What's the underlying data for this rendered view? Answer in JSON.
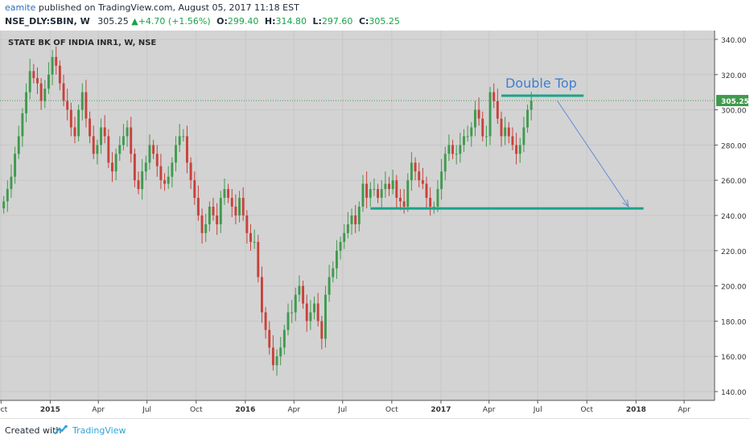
{
  "header": {
    "author": "eamite",
    "published_text": " published on TradingView.com, August 05, 2017 11:18 EST",
    "symbol": "NSE_DLY:SBIN, W",
    "last": "305.25",
    "change": "+4.70 (+1.56%)",
    "o_label": "O:",
    "o_value": "299.40",
    "h_label": "H:",
    "h_value": "314.80",
    "l_label": "L:",
    "l_value": "297.60",
    "c_label": "C:",
    "c_value": "305.25"
  },
  "footer": {
    "created_with": "Created with",
    "brand": "TradingView"
  },
  "colors": {
    "background": "#d3d3d3",
    "up": "#3f9a4d",
    "down": "#c8413a",
    "annotation_line": "#1aa38a",
    "arrow": "#5b8fd8",
    "price_badge": "#3f9a4d"
  },
  "chart_data": {
    "type": "candlestick",
    "title": "STATE BK OF INDIA INR1, W, NSE",
    "ylim": [
      135,
      345
    ],
    "y_ticks": [
      140,
      160,
      180,
      200,
      220,
      240,
      260,
      280,
      300,
      320,
      340
    ],
    "y_tick_labels": [
      "140.00",
      "160.00",
      "180.00",
      "200.00",
      "220.00",
      "240.00",
      "260.00",
      "280.00",
      "300.00",
      "320.00",
      "340.00"
    ],
    "x_range": [
      "2014-09-29",
      "2018-05-28"
    ],
    "x_ticks": [
      {
        "date": "2014-10-01",
        "label": "Oct",
        "bold": false
      },
      {
        "date": "2015-01-01",
        "label": "2015",
        "bold": true
      },
      {
        "date": "2015-04-01",
        "label": "Apr",
        "bold": false
      },
      {
        "date": "2015-07-01",
        "label": "Jul",
        "bold": false
      },
      {
        "date": "2015-10-01",
        "label": "Oct",
        "bold": false
      },
      {
        "date": "2016-01-01",
        "label": "2016",
        "bold": true
      },
      {
        "date": "2016-04-01",
        "label": "Apr",
        "bold": false
      },
      {
        "date": "2016-07-01",
        "label": "Jul",
        "bold": false
      },
      {
        "date": "2016-10-01",
        "label": "Oct",
        "bold": false
      },
      {
        "date": "2017-01-01",
        "label": "2017",
        "bold": true
      },
      {
        "date": "2017-04-01",
        "label": "Apr",
        "bold": false
      },
      {
        "date": "2017-07-01",
        "label": "Jul",
        "bold": false
      },
      {
        "date": "2017-10-01",
        "label": "Oct",
        "bold": false
      },
      {
        "date": "2018-01-01",
        "label": "2018",
        "bold": true
      },
      {
        "date": "2018-04-01",
        "label": "Apr",
        "bold": false
      }
    ],
    "first_candle_date": "2014-10-06",
    "candle_interval_days": 7,
    "closes": [
      248,
      255,
      262,
      275,
      285,
      298,
      310,
      322,
      318,
      315,
      305,
      312,
      320,
      330,
      325,
      315,
      305,
      300,
      290,
      285,
      300,
      310,
      295,
      285,
      275,
      280,
      290,
      285,
      270,
      265,
      275,
      280,
      285,
      290,
      275,
      260,
      255,
      265,
      270,
      280,
      275,
      268,
      260,
      258,
      262,
      270,
      280,
      285,
      285,
      270,
      260,
      250,
      240,
      230,
      235,
      245,
      240,
      235,
      250,
      255,
      250,
      245,
      240,
      250,
      240,
      230,
      225,
      225,
      205,
      185,
      175,
      165,
      155,
      160,
      165,
      175,
      185,
      185,
      195,
      200,
      190,
      180,
      185,
      190,
      180,
      170,
      195,
      205,
      210,
      220,
      225,
      230,
      235,
      240,
      235,
      245,
      258,
      250,
      255,
      255,
      250,
      255,
      258,
      255,
      260,
      250,
      248,
      245,
      260,
      270,
      265,
      260,
      258,
      250,
      245,
      245,
      255,
      265,
      275,
      280,
      275,
      275,
      280,
      285,
      285,
      290,
      300,
      295,
      285,
      285,
      310,
      305,
      295,
      285,
      290,
      285,
      280,
      275,
      280,
      290,
      300,
      305.25
    ],
    "annotations": [
      {
        "type": "hline",
        "text": "Double Top",
        "y": 308,
        "x_start": "2017-04-24",
        "x_end": "2017-09-25"
      },
      {
        "type": "hline",
        "text": "",
        "y": 244,
        "x_start": "2016-08-22",
        "x_end": "2018-01-15"
      },
      {
        "type": "arrow",
        "text": "",
        "x_start": "2017-08-07",
        "y_start": 305,
        "x_end": "2017-12-18",
        "y_end": 245
      }
    ],
    "last_price_label": "305.25",
    "last_price": 305.25
  }
}
